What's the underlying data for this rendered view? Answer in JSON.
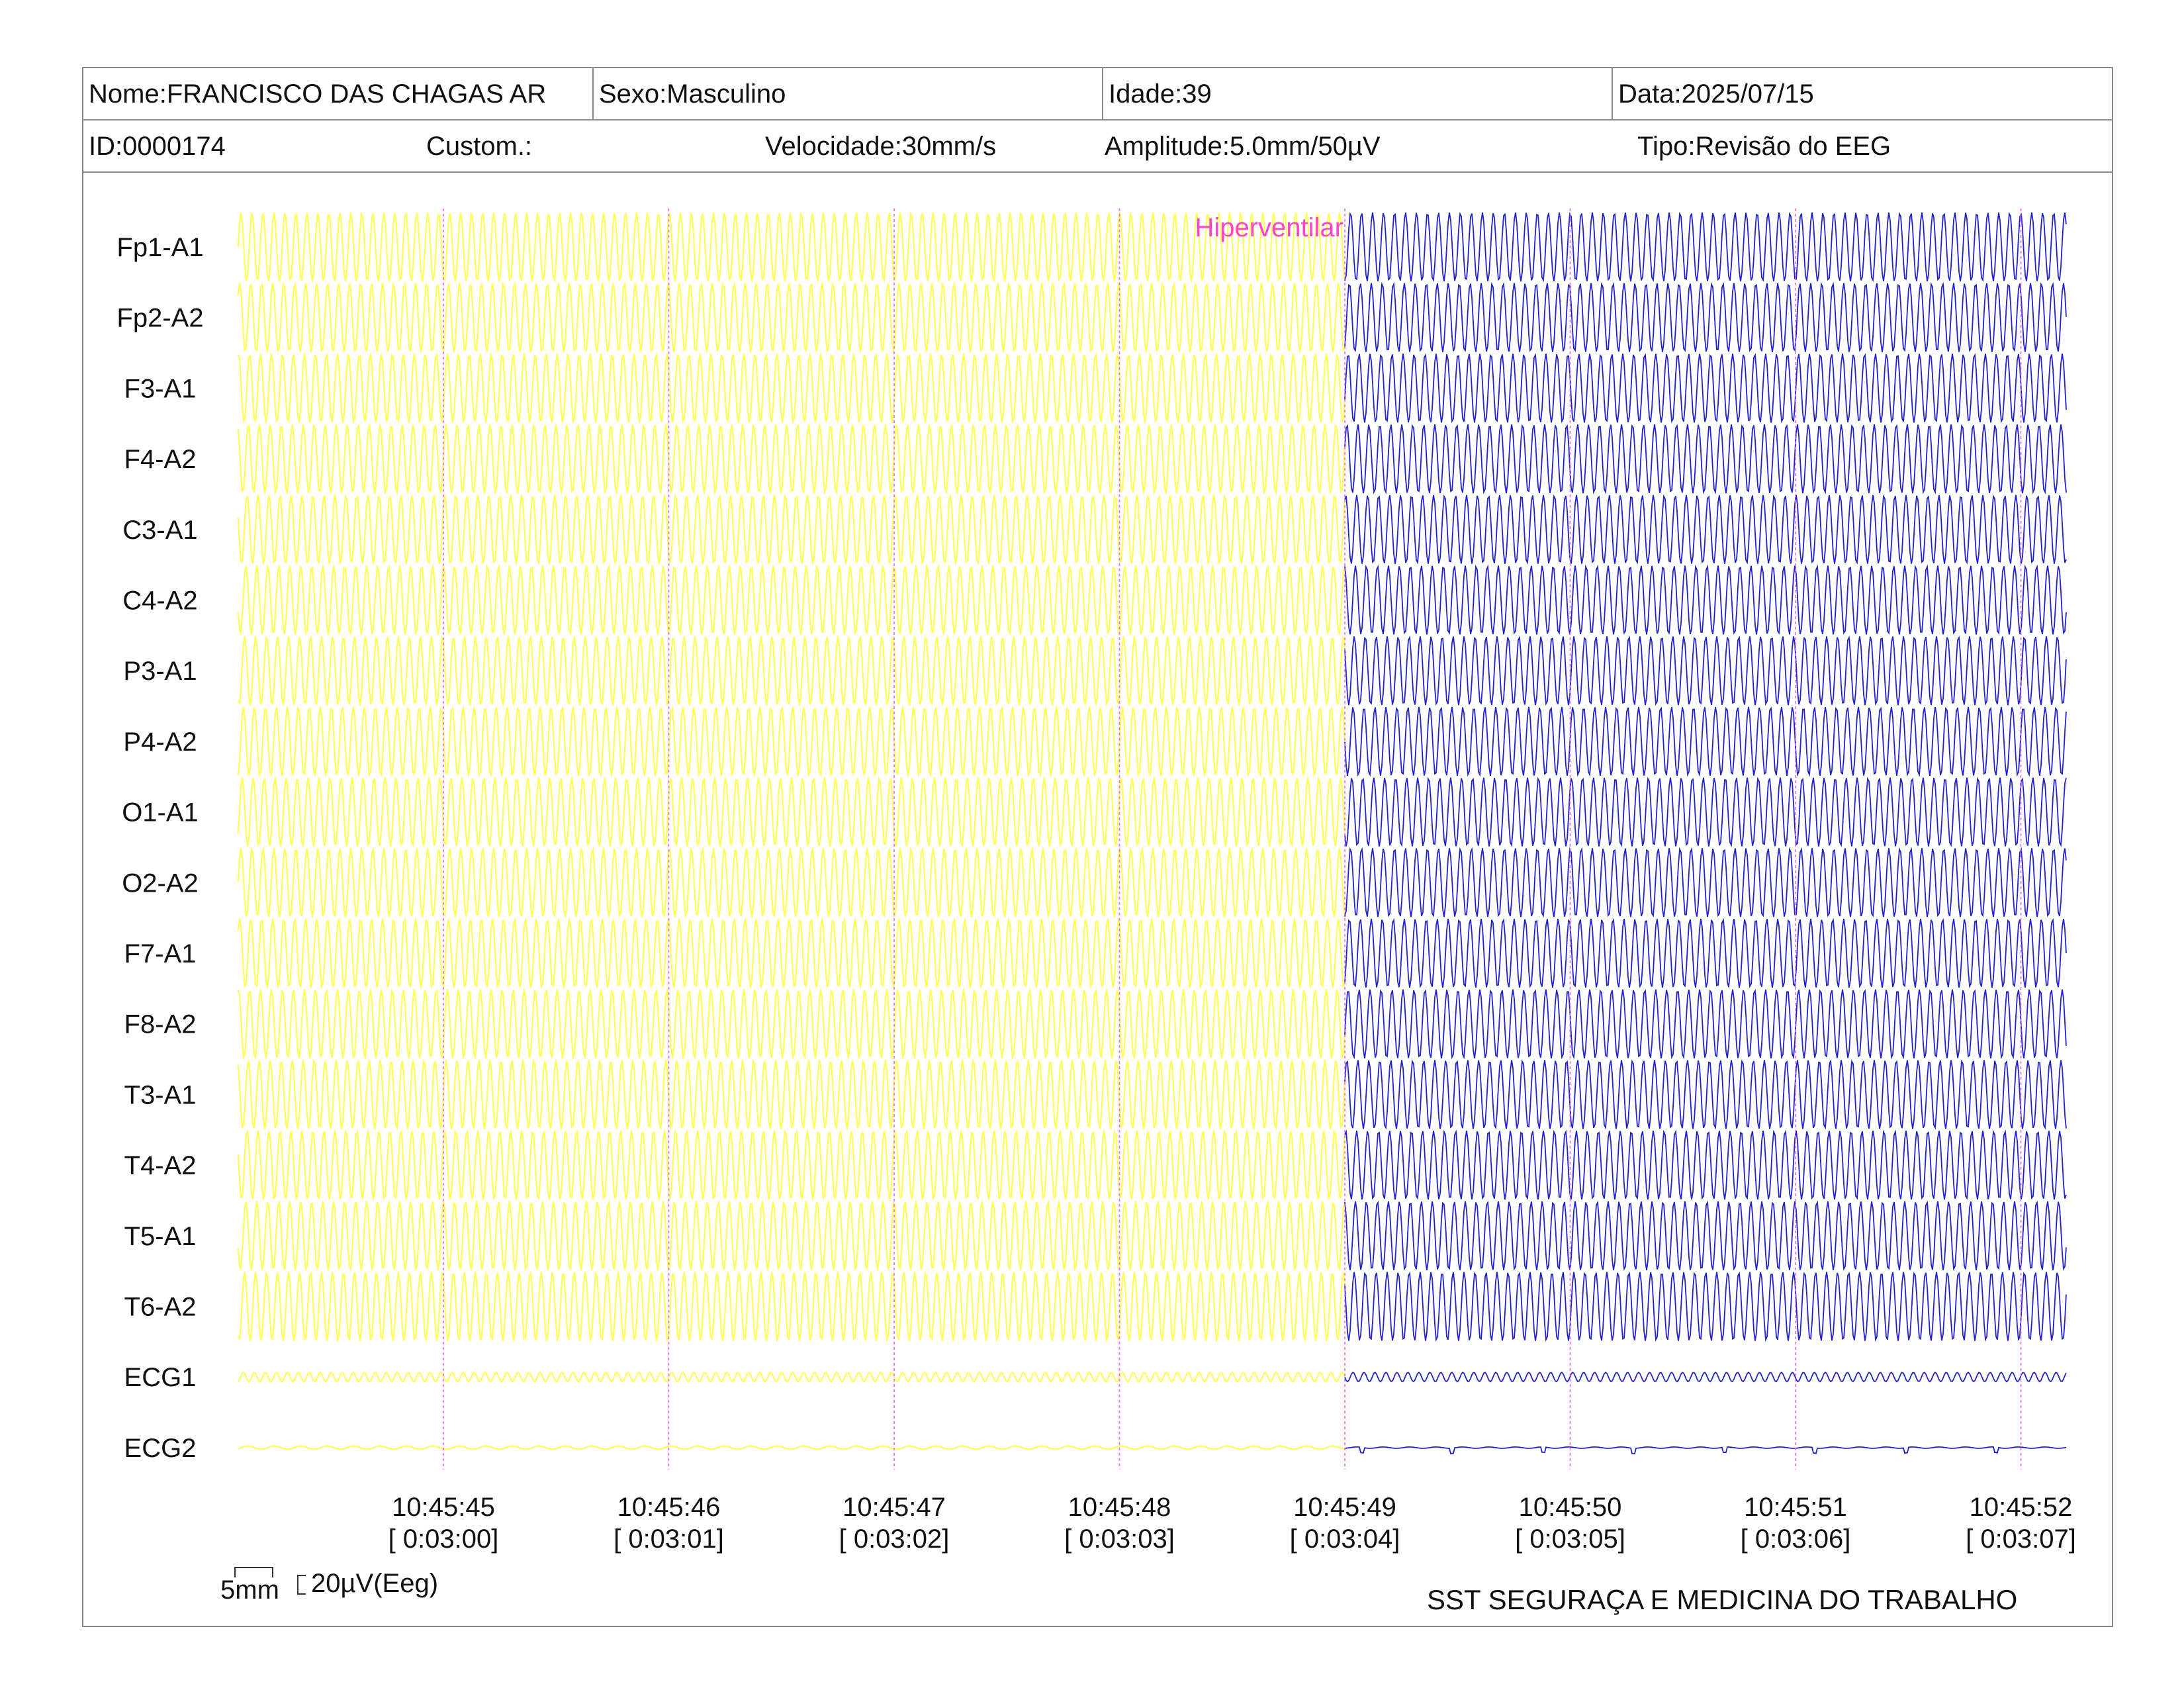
{
  "header": {
    "nome": "Nome:FRANCISCO DAS CHAGAS AR",
    "sexo": "Sexo:Masculino",
    "idade": "Idade:39",
    "data": "Data:2025/07/15",
    "id": "ID:0000174",
    "custom": "Custom.:",
    "velocidade": "Velocidade:30mm/s",
    "amplitude": "Amplitude:5.0mm/50µV",
    "tipo": "Tipo:Revisão do EEG"
  },
  "chart_data": {
    "type": "line",
    "channels": [
      "Fp1-A1",
      "Fp2-A2",
      "F3-A1",
      "F4-A2",
      "C3-A1",
      "C4-A2",
      "P3-A1",
      "P4-A2",
      "O1-A1",
      "O2-A2",
      "F7-A1",
      "F8-A2",
      "T3-A1",
      "T4-A2",
      "T5-A1",
      "T6-A2",
      "ECG1",
      "ECG2"
    ],
    "time_ticks": [
      {
        "time": "10:45:45",
        "elapsed": "[ 0:03:00]"
      },
      {
        "time": "10:45:46",
        "elapsed": "[ 0:03:01]"
      },
      {
        "time": "10:45:47",
        "elapsed": "[ 0:03:02]"
      },
      {
        "time": "10:45:48",
        "elapsed": "[ 0:03:03]"
      },
      {
        "time": "10:45:49",
        "elapsed": "[ 0:03:04]"
      },
      {
        "time": "10:45:50",
        "elapsed": "[ 0:03:05]"
      },
      {
        "time": "10:45:51",
        "elapsed": "[ 0:03:06]"
      },
      {
        "time": "10:45:52",
        "elapsed": "[ 0:03:07]"
      }
    ],
    "segments": [
      {
        "from": "start",
        "to": "10:45:49",
        "color": "#ffff55"
      },
      {
        "from": "10:45:49",
        "to": "end",
        "color": "#2222cc"
      }
    ],
    "annotation": {
      "label": "Hiperventilar",
      "time": "10:45:49",
      "color": "#ff44cc"
    },
    "grid_color": "#ee66ee"
  },
  "scale": {
    "time_label": "5mm",
    "amp_label": "20µV(Eeg)"
  },
  "footer": "SST SEGURAÇA E MEDICINA DO TRABALHO"
}
